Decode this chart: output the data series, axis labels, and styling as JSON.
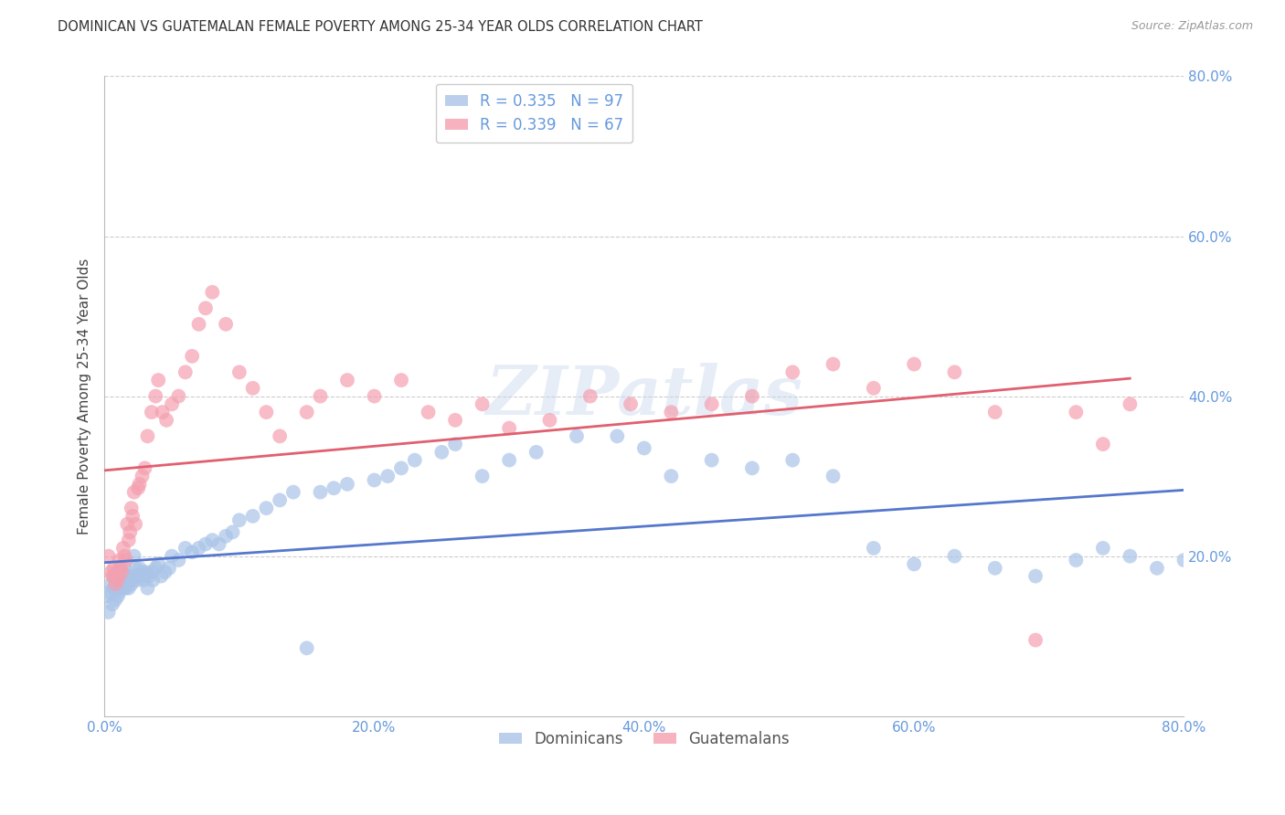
{
  "title": "DOMINICAN VS GUATEMALAN FEMALE POVERTY AMONG 25-34 YEAR OLDS CORRELATION CHART",
  "source": "Source: ZipAtlas.com",
  "ylabel": "Female Poverty Among 25-34 Year Olds",
  "xlim": [
    0.0,
    0.8
  ],
  "ylim": [
    0.0,
    0.8
  ],
  "xticks": [
    0.0,
    0.2,
    0.4,
    0.6,
    0.8
  ],
  "yticks": [
    0.2,
    0.4,
    0.6,
    0.8
  ],
  "xticklabels": [
    "0.0%",
    "20.0%",
    "40.0%",
    "60.0%",
    "80.0%"
  ],
  "yticklabels": [
    "20.0%",
    "40.0%",
    "60.0%",
    "80.0%"
  ],
  "background_color": "#ffffff",
  "grid_color": "#cccccc",
  "dominican_color": "#aac4e8",
  "guatemalan_color": "#f4a0b0",
  "dominican_line_color": "#5577cc",
  "guatemalan_line_color": "#e06070",
  "R_dominican": 0.335,
  "N_dominican": 97,
  "R_guatemalan": 0.339,
  "N_guatemalan": 67,
  "watermark": "ZIPatlas",
  "dominican_x": [
    0.002,
    0.003,
    0.004,
    0.005,
    0.006,
    0.007,
    0.007,
    0.008,
    0.008,
    0.009,
    0.009,
    0.01,
    0.01,
    0.01,
    0.011,
    0.011,
    0.012,
    0.012,
    0.013,
    0.013,
    0.014,
    0.014,
    0.015,
    0.015,
    0.016,
    0.016,
    0.017,
    0.018,
    0.019,
    0.02,
    0.021,
    0.022,
    0.022,
    0.023,
    0.024,
    0.025,
    0.026,
    0.027,
    0.028,
    0.029,
    0.03,
    0.031,
    0.032,
    0.033,
    0.035,
    0.036,
    0.038,
    0.04,
    0.042,
    0.045,
    0.048,
    0.05,
    0.055,
    0.06,
    0.065,
    0.07,
    0.075,
    0.08,
    0.085,
    0.09,
    0.095,
    0.1,
    0.11,
    0.12,
    0.13,
    0.14,
    0.15,
    0.16,
    0.17,
    0.18,
    0.2,
    0.21,
    0.22,
    0.23,
    0.25,
    0.26,
    0.28,
    0.3,
    0.32,
    0.35,
    0.38,
    0.4,
    0.42,
    0.45,
    0.48,
    0.51,
    0.54,
    0.57,
    0.6,
    0.63,
    0.66,
    0.69,
    0.72,
    0.74,
    0.76,
    0.78,
    0.8
  ],
  "dominican_y": [
    0.15,
    0.13,
    0.155,
    0.165,
    0.14,
    0.175,
    0.16,
    0.17,
    0.145,
    0.16,
    0.175,
    0.165,
    0.15,
    0.18,
    0.17,
    0.155,
    0.16,
    0.175,
    0.165,
    0.18,
    0.16,
    0.175,
    0.165,
    0.185,
    0.16,
    0.175,
    0.17,
    0.16,
    0.175,
    0.165,
    0.17,
    0.175,
    0.2,
    0.185,
    0.17,
    0.175,
    0.185,
    0.175,
    0.18,
    0.17,
    0.175,
    0.18,
    0.16,
    0.175,
    0.18,
    0.17,
    0.185,
    0.19,
    0.175,
    0.18,
    0.185,
    0.2,
    0.195,
    0.21,
    0.205,
    0.21,
    0.215,
    0.22,
    0.215,
    0.225,
    0.23,
    0.245,
    0.25,
    0.26,
    0.27,
    0.28,
    0.085,
    0.28,
    0.285,
    0.29,
    0.295,
    0.3,
    0.31,
    0.32,
    0.33,
    0.34,
    0.3,
    0.32,
    0.33,
    0.35,
    0.35,
    0.335,
    0.3,
    0.32,
    0.31,
    0.32,
    0.3,
    0.21,
    0.19,
    0.2,
    0.185,
    0.175,
    0.195,
    0.21,
    0.2,
    0.185,
    0.195
  ],
  "guatemalan_x": [
    0.003,
    0.005,
    0.006,
    0.007,
    0.008,
    0.009,
    0.01,
    0.011,
    0.012,
    0.013,
    0.014,
    0.015,
    0.016,
    0.017,
    0.018,
    0.019,
    0.02,
    0.021,
    0.022,
    0.023,
    0.025,
    0.026,
    0.028,
    0.03,
    0.032,
    0.035,
    0.038,
    0.04,
    0.043,
    0.046,
    0.05,
    0.055,
    0.06,
    0.065,
    0.07,
    0.075,
    0.08,
    0.09,
    0.1,
    0.11,
    0.12,
    0.13,
    0.15,
    0.16,
    0.18,
    0.2,
    0.22,
    0.24,
    0.26,
    0.28,
    0.3,
    0.33,
    0.36,
    0.39,
    0.42,
    0.45,
    0.48,
    0.51,
    0.54,
    0.57,
    0.6,
    0.63,
    0.66,
    0.69,
    0.72,
    0.74,
    0.76
  ],
  "guatemalan_y": [
    0.2,
    0.18,
    0.175,
    0.185,
    0.165,
    0.175,
    0.17,
    0.195,
    0.185,
    0.18,
    0.21,
    0.2,
    0.195,
    0.24,
    0.22,
    0.23,
    0.26,
    0.25,
    0.28,
    0.24,
    0.285,
    0.29,
    0.3,
    0.31,
    0.35,
    0.38,
    0.4,
    0.42,
    0.38,
    0.37,
    0.39,
    0.4,
    0.43,
    0.45,
    0.49,
    0.51,
    0.53,
    0.49,
    0.43,
    0.41,
    0.38,
    0.35,
    0.38,
    0.4,
    0.42,
    0.4,
    0.42,
    0.38,
    0.37,
    0.39,
    0.36,
    0.37,
    0.4,
    0.39,
    0.38,
    0.39,
    0.4,
    0.43,
    0.44,
    0.41,
    0.44,
    0.43,
    0.38,
    0.095,
    0.38,
    0.34,
    0.39
  ]
}
